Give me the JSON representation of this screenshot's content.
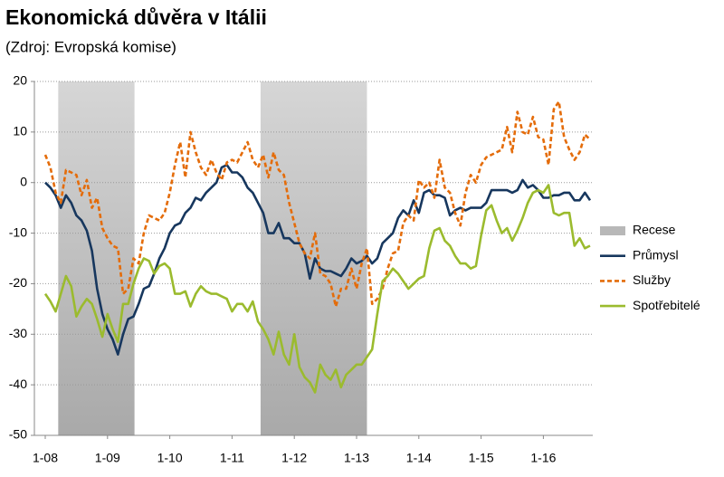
{
  "chart_data": {
    "type": "line",
    "title": "Ekonomická důvěra v Itálii",
    "subtitle": "(Zdroj: Evropská komise)",
    "categories": [
      "1-08",
      null,
      null,
      null,
      null,
      null,
      null,
      null,
      null,
      null,
      null,
      null,
      "1-09",
      null,
      null,
      null,
      null,
      null,
      null,
      null,
      null,
      null,
      null,
      null,
      "1-10",
      null,
      null,
      null,
      null,
      null,
      null,
      null,
      null,
      null,
      null,
      null,
      "1-11",
      null,
      null,
      null,
      null,
      null,
      null,
      null,
      null,
      null,
      null,
      null,
      "1-12",
      null,
      null,
      null,
      null,
      null,
      null,
      null,
      null,
      null,
      null,
      null,
      "1-13",
      null,
      null,
      null,
      null,
      null,
      null,
      null,
      null,
      null,
      null,
      null,
      "1-14",
      null,
      null,
      null,
      null,
      null,
      null,
      null,
      null,
      null,
      null,
      null,
      "1-15",
      null,
      null,
      null,
      null,
      null,
      null,
      null,
      null,
      null,
      null,
      null,
      "1-16",
      null,
      null,
      null,
      null,
      null,
      null,
      null,
      null,
      null
    ],
    "recession": {
      "name": "Recese",
      "color": "#b8b8b8",
      "ranges": [
        [
          2.5,
          17.2
        ],
        [
          41.5,
          62
        ]
      ]
    },
    "series": [
      {
        "name": "Průmysl",
        "color": "#17375e",
        "dash": false,
        "values": [
          0,
          -1,
          -2.5,
          -5,
          -2.5,
          -4,
          -6.5,
          -7.5,
          -9.5,
          -13.5,
          -21,
          -26,
          -29,
          -31,
          -34,
          -30,
          -27,
          -26.5,
          -24,
          -21,
          -20.5,
          -18,
          -15,
          -13,
          -10,
          -8.5,
          -8,
          -6,
          -5,
          -3,
          -3.5,
          -2,
          -1,
          0,
          3,
          3.5,
          2,
          2,
          1,
          -1,
          -2,
          -4,
          -6,
          -10,
          -10,
          -8,
          -11,
          -11,
          -12,
          -12,
          -14,
          -19,
          -15,
          -17,
          -17.5,
          -17.5,
          -18,
          -18.5,
          -17,
          -15,
          -16,
          -15.5,
          -14.5,
          -16,
          -15,
          -12,
          -11,
          -10,
          -7,
          -5.5,
          -6.5,
          -3.5,
          -6,
          -2,
          -1.5,
          -2.5,
          -2.5,
          -3,
          -6.5,
          -5.5,
          -5,
          -5.5,
          -5,
          -5,
          -5,
          -4,
          -1.5,
          -1.5,
          -1.5,
          -1.5,
          -2,
          -1.5,
          0.5,
          -1,
          -0.5,
          -1.5,
          -3,
          -3,
          -2.5,
          -2.5,
          -2,
          -2,
          -3.5,
          -3.5,
          -2,
          -3.5
        ]
      },
      {
        "name": "Služby",
        "color": "#e46c0a",
        "dash": true,
        "values": [
          5.5,
          3,
          -2,
          -4,
          2.5,
          2,
          1.5,
          -2.5,
          0.5,
          -5,
          -3,
          -9,
          -11,
          -12.5,
          -13,
          -22,
          -21,
          -15,
          -16,
          -10,
          -6.5,
          -7,
          -7.5,
          -6,
          -2,
          3.5,
          8,
          1,
          10,
          6,
          3,
          1.5,
          4.5,
          2,
          0.5,
          4,
          4.5,
          4,
          6,
          8,
          4.5,
          3,
          5.5,
          1,
          6,
          2.5,
          1.5,
          -4,
          -8,
          -12,
          -14,
          -15,
          -10,
          -18,
          -18.5,
          -20,
          -24.5,
          -21,
          -21,
          -17,
          -21,
          -16,
          -13,
          -24,
          -23,
          -21,
          -17,
          -14,
          -13.5,
          -8,
          -6.5,
          -7.5,
          0.5,
          -1,
          0,
          -3,
          4.5,
          -1,
          -2,
          -6,
          -8.5,
          -2,
          1.5,
          0,
          3.5,
          5,
          5.5,
          6,
          6.5,
          11,
          6,
          14,
          10,
          9.5,
          13,
          9,
          8.5,
          3.5,
          14.5,
          16,
          9,
          6.5,
          4.5,
          6,
          9.5,
          8.5
        ]
      },
      {
        "name": "Spotřebitelé",
        "color": "#9bbb2e",
        "dash": false,
        "values": [
          -22,
          -23.5,
          -25.5,
          -22,
          -18.5,
          -20.5,
          -26.5,
          -24.5,
          -23,
          -24,
          -27,
          -30.5,
          -26,
          -29,
          -31.5,
          -24,
          -24,
          -20,
          -17,
          -15,
          -15.5,
          -18,
          -16.5,
          -16,
          -17,
          -22,
          -22,
          -21.5,
          -24.5,
          -22,
          -20.5,
          -21.5,
          -22,
          -22,
          -22.5,
          -23,
          -25.5,
          -24,
          -24,
          -25.5,
          -23.5,
          -27.5,
          -29,
          -31,
          -34,
          -29.5,
          -34,
          -36,
          -30,
          -36.5,
          -38.5,
          -39.5,
          -41.5,
          -36,
          -38,
          -39,
          -37,
          -40.5,
          -38,
          -37,
          -36,
          -36,
          -34.5,
          -33,
          -26,
          -19.5,
          -18.5,
          -17,
          -18,
          -19.5,
          -21,
          -20,
          -19,
          -18.5,
          -13,
          -9.5,
          -9,
          -11.5,
          -12.5,
          -14.5,
          -16,
          -16,
          -17,
          -16.5,
          -10.5,
          -5.5,
          -4.5,
          -7.5,
          -10,
          -9,
          -11.5,
          -9.5,
          -7,
          -4,
          -2,
          -1.5,
          -2,
          -0.5,
          -6,
          -6.5,
          -6,
          -6,
          -12.5,
          -11,
          -13,
          -12.5
        ]
      }
    ],
    "ylim": [
      -50,
      20
    ],
    "yticks": [
      -50,
      -40,
      -30,
      -20,
      -10,
      0,
      10,
      20
    ],
    "grid": true
  }
}
